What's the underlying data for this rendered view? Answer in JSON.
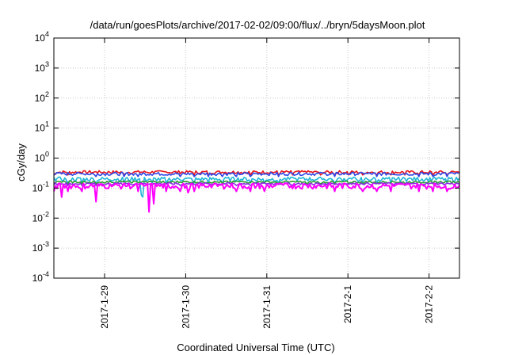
{
  "chart_data": {
    "type": "line",
    "title": "/data/run/goesPlots/archive/2017-02-02/09:00/flux/../bryn/5daysMoon.plot",
    "xlabel": "Coordinated Universal Time (UTC)",
    "ylabel": "cGy/day",
    "yscale": "log",
    "ylim": [
      0.0001,
      10000
    ],
    "y_ticks": [
      {
        "base": "10",
        "exp": "4"
      },
      {
        "base": "10",
        "exp": "3"
      },
      {
        "base": "10",
        "exp": "2"
      },
      {
        "base": "10",
        "exp": "1"
      },
      {
        "base": "10",
        "exp": "0"
      },
      {
        "base": "10",
        "exp": "-1"
      },
      {
        "base": "10",
        "exp": "-2"
      },
      {
        "base": "10",
        "exp": "-3"
      },
      {
        "base": "10",
        "exp": "-4"
      }
    ],
    "x_ticks": [
      "2017-1-29",
      "2017-1-30",
      "2017-1-31",
      "2017-2-1",
      "2017-2-2"
    ],
    "x_range": [
      "2017-01-28 09:00",
      "2017-02-02 09:00"
    ],
    "grid": true,
    "series": [
      {
        "color": "#e8141c",
        "baseline": 0.34,
        "noise": 0.12,
        "dips": []
      },
      {
        "color": "#2f47e6",
        "baseline": 0.3,
        "noise": 0.12,
        "dips": []
      },
      {
        "color": "#21b6d6",
        "baseline": 0.2,
        "noise": 0.16,
        "dips": [
          {
            "t": 0.22,
            "v": 0.05
          },
          {
            "t": 0.215,
            "v": 0.06
          }
        ]
      },
      {
        "color": "#2e9a2e",
        "baseline": 0.16,
        "noise": 0.08,
        "dips": []
      },
      {
        "color": "#8a2be2",
        "baseline": 0.14,
        "noise": 0.08,
        "dips": []
      },
      {
        "color": "#ff00ff",
        "baseline": 0.12,
        "noise": 0.22,
        "dips": [
          {
            "t": 0.02,
            "v": 0.05
          },
          {
            "t": 0.105,
            "v": 0.035
          },
          {
            "t": 0.235,
            "v": 0.016
          },
          {
            "t": 0.245,
            "v": 0.03
          },
          {
            "t": 0.33,
            "v": 0.07
          }
        ]
      }
    ]
  }
}
